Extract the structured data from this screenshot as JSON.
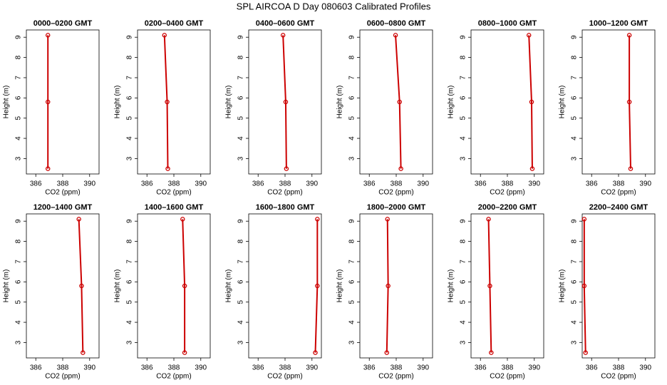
{
  "title": "SPL AIRCOA D  Day 080603  Calibrated Profiles",
  "chart_data": [
    {
      "type": "line",
      "title": "0000–0200 GMT",
      "xlabel": "CO2 (ppm)",
      "ylabel": "Height (m)",
      "color": "#cc0000",
      "x": [
        386.9,
        386.9,
        386.9
      ],
      "values": [
        2.5,
        5.8,
        9.1
      ],
      "xlim": [
        385.3,
        390.7
      ],
      "xticks": [
        386,
        388,
        390
      ],
      "ylim": [
        2.24,
        9.36
      ],
      "yticks": [
        3,
        4,
        5,
        6,
        7,
        8,
        9
      ]
    },
    {
      "type": "line",
      "title": "0200–0400 GMT",
      "xlabel": "CO2 (ppm)",
      "ylabel": "Height (m)",
      "color": "#cc0000",
      "x": [
        387.55,
        387.5,
        387.3
      ],
      "values": [
        2.5,
        5.8,
        9.1
      ],
      "xlim": [
        385.3,
        390.7
      ],
      "xticks": [
        386,
        388,
        390
      ],
      "ylim": [
        2.24,
        9.36
      ],
      "yticks": [
        3,
        4,
        5,
        6,
        7,
        8,
        9
      ]
    },
    {
      "type": "line",
      "title": "0400–0600 GMT",
      "xlabel": "CO2 (ppm)",
      "ylabel": "Height (m)",
      "color": "#cc0000",
      "x": [
        388.1,
        388.05,
        387.85
      ],
      "values": [
        2.5,
        5.8,
        9.1
      ],
      "xlim": [
        385.3,
        390.7
      ],
      "xticks": [
        386,
        388,
        390
      ],
      "ylim": [
        2.24,
        9.36
      ],
      "yticks": [
        3,
        4,
        5,
        6,
        7,
        8,
        9
      ]
    },
    {
      "type": "line",
      "title": "0600–0800 GMT",
      "xlabel": "CO2 (ppm)",
      "ylabel": "Height (m)",
      "color": "#cc0000",
      "x": [
        388.35,
        388.25,
        387.95
      ],
      "values": [
        2.5,
        5.8,
        9.1
      ],
      "xlim": [
        385.3,
        390.7
      ],
      "xticks": [
        386,
        388,
        390
      ],
      "ylim": [
        2.24,
        9.36
      ],
      "yticks": [
        3,
        4,
        5,
        6,
        7,
        8,
        9
      ]
    },
    {
      "type": "line",
      "title": "0800–1000 GMT",
      "xlabel": "CO2 (ppm)",
      "ylabel": "Height (m)",
      "color": "#cc0000",
      "x": [
        389.85,
        389.8,
        389.6
      ],
      "values": [
        2.5,
        5.8,
        9.1
      ],
      "xlim": [
        385.3,
        390.7
      ],
      "xticks": [
        386,
        388,
        390
      ],
      "ylim": [
        2.24,
        9.36
      ],
      "yticks": [
        3,
        4,
        5,
        6,
        7,
        8,
        9
      ]
    },
    {
      "type": "line",
      "title": "1000–1200 GMT",
      "xlabel": "CO2 (ppm)",
      "ylabel": "Height (m)",
      "color": "#cc0000",
      "x": [
        388.9,
        388.8,
        388.8
      ],
      "values": [
        2.5,
        5.8,
        9.1
      ],
      "xlim": [
        385.3,
        390.7
      ],
      "xticks": [
        386,
        388,
        390
      ],
      "ylim": [
        2.24,
        9.36
      ],
      "yticks": [
        3,
        4,
        5,
        6,
        7,
        8,
        9
      ]
    },
    {
      "type": "line",
      "title": "1200–1400 GMT",
      "xlabel": "CO2 (ppm)",
      "ylabel": "Height (m)",
      "color": "#cc0000",
      "x": [
        389.5,
        389.4,
        389.2
      ],
      "values": [
        2.5,
        5.8,
        9.1
      ],
      "xlim": [
        385.3,
        390.7
      ],
      "xticks": [
        386,
        388,
        390
      ],
      "ylim": [
        2.24,
        9.36
      ],
      "yticks": [
        3,
        4,
        5,
        6,
        7,
        8,
        9
      ]
    },
    {
      "type": "line",
      "title": "1400–1600 GMT",
      "xlabel": "CO2 (ppm)",
      "ylabel": "Height (m)",
      "color": "#cc0000",
      "x": [
        388.8,
        388.8,
        388.65
      ],
      "values": [
        2.5,
        5.8,
        9.1
      ],
      "xlim": [
        385.3,
        390.7
      ],
      "xticks": [
        386,
        388,
        390
      ],
      "ylim": [
        2.24,
        9.36
      ],
      "yticks": [
        3,
        4,
        5,
        6,
        7,
        8,
        9
      ]
    },
    {
      "type": "line",
      "title": "1600–1800 GMT",
      "xlabel": "CO2 (ppm)",
      "ylabel": "Height (m)",
      "color": "#cc0000",
      "x": [
        390.25,
        390.4,
        390.4
      ],
      "values": [
        2.5,
        5.8,
        9.1
      ],
      "xlim": [
        385.3,
        390.7
      ],
      "xticks": [
        386,
        388,
        390
      ],
      "ylim": [
        2.24,
        9.36
      ],
      "yticks": [
        3,
        4,
        5,
        6,
        7,
        8,
        9
      ]
    },
    {
      "type": "line",
      "title": "1800–2000 GMT",
      "xlabel": "CO2 (ppm)",
      "ylabel": "Height (m)",
      "color": "#cc0000",
      "x": [
        387.3,
        387.4,
        387.35
      ],
      "values": [
        2.5,
        5.8,
        9.1
      ],
      "xlim": [
        385.3,
        390.7
      ],
      "xticks": [
        386,
        388,
        390
      ],
      "ylim": [
        2.24,
        9.36
      ],
      "yticks": [
        3,
        4,
        5,
        6,
        7,
        8,
        9
      ]
    },
    {
      "type": "line",
      "title": "2000–2200 GMT",
      "xlabel": "CO2 (ppm)",
      "ylabel": "Height (m)",
      "color": "#cc0000",
      "x": [
        386.8,
        386.7,
        386.6
      ],
      "values": [
        2.5,
        5.8,
        9.1
      ],
      "xlim": [
        385.3,
        390.7
      ],
      "xticks": [
        386,
        388,
        390
      ],
      "ylim": [
        2.24,
        9.36
      ],
      "yticks": [
        3,
        4,
        5,
        6,
        7,
        8,
        9
      ]
    },
    {
      "type": "line",
      "title": "2200–2400 GMT",
      "xlabel": "CO2 (ppm)",
      "ylabel": "Height (m)",
      "color": "#cc0000",
      "x": [
        385.55,
        385.45,
        385.45
      ],
      "values": [
        2.5,
        5.8,
        9.1
      ],
      "xlim": [
        385.3,
        390.7
      ],
      "xticks": [
        386,
        388,
        390
      ],
      "ylim": [
        2.24,
        9.36
      ],
      "yticks": [
        3,
        4,
        5,
        6,
        7,
        8,
        9
      ]
    }
  ]
}
